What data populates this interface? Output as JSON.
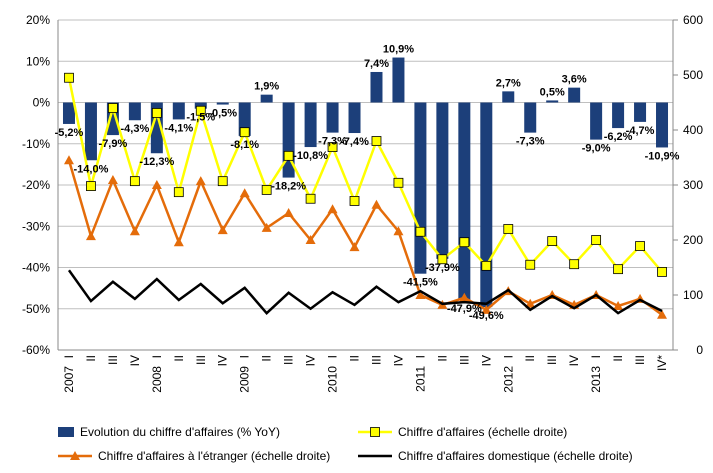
{
  "chart_data": {
    "type": "bar_line",
    "categories": [
      "I",
      "II",
      "III",
      "IV",
      "I",
      "II",
      "III",
      "IV",
      "I",
      "II",
      "III",
      "IV",
      "I",
      "II",
      "III",
      "IV",
      "I",
      "II",
      "III",
      "IV",
      "I",
      "II",
      "III",
      "IV",
      "I",
      "II",
      "III",
      "IV*"
    ],
    "years": [
      "2007",
      "2008",
      "2009",
      "2010",
      "2011",
      "2012",
      "2013"
    ],
    "ylim": [
      -60,
      20
    ],
    "yticks": [
      {
        "value": -60,
        "label": "-60%"
      },
      {
        "value": -50,
        "label": "-50%"
      },
      {
        "value": -40,
        "label": "-40%"
      },
      {
        "value": -30,
        "label": "-30%"
      },
      {
        "value": -20,
        "label": "-20%"
      },
      {
        "value": -10,
        "label": "-10%"
      },
      {
        "value": 0,
        "label": "0%"
      },
      {
        "value": 10,
        "label": "10%"
      },
      {
        "value": 20,
        "label": "20%"
      }
    ],
    "y2lim": [
      0,
      600
    ],
    "y2ticks": [
      0,
      100,
      200,
      300,
      400,
      500,
      600
    ],
    "grid": true,
    "series": [
      {
        "name": "Evolution du chiffre d'affaires (% YoY)",
        "type": "bar",
        "color": "#1c3f7a",
        "axis": "y",
        "values": [
          -5.2,
          -14.0,
          -7.9,
          -4.3,
          -12.3,
          -4.1,
          -1.5,
          -0.5,
          -8.1,
          1.9,
          -18.2,
          -10.8,
          -7.3,
          -7.4,
          7.4,
          10.9,
          -41.5,
          -37.9,
          -47.9,
          -49.6,
          2.7,
          -7.3,
          0.5,
          3.6,
          -9.0,
          -6.2,
          -4.7,
          -10.9
        ],
        "value_labels": [
          "-5,2%",
          "-14,0%",
          "-7,9%",
          "-4,3%",
          "-12,3%",
          "-4,1%",
          "-1,5%",
          "-0,5%",
          "-8,1%",
          "1,9%",
          "-18,2%",
          "-10,8%",
          "-7,3%",
          "-7,4%",
          "7,4%",
          "10,9%",
          "-41,5%",
          "-37,9%",
          "-47,9%",
          "-49,6%",
          "2,7%",
          "-7,3%",
          "0,5%",
          "3,6%",
          "-9,0%",
          "-6,2%",
          "-4,7%",
          "-10,9%"
        ]
      },
      {
        "name": "Chiffre d'affaires (échelle droite)",
        "type": "line",
        "marker": "square",
        "color": "#ffff00",
        "axis": "y2",
        "values": [
          495,
          298,
          440,
          307,
          431,
          287,
          435,
          307,
          396,
          291,
          353,
          275,
          369,
          271,
          380,
          304,
          215,
          165,
          196,
          153,
          220,
          155,
          198,
          156,
          200,
          147,
          189,
          142
        ]
      },
      {
        "name": "Chiffre d'affaires à l'étranger (échelle droite)",
        "type": "line",
        "marker": "triangle",
        "color": "#e46c0a",
        "axis": "y2",
        "values": [
          345,
          207,
          309,
          216,
          300,
          196,
          307,
          218,
          285,
          222,
          249,
          200,
          256,
          187,
          264,
          216,
          100,
          82,
          95,
          73,
          107,
          84,
          100,
          82,
          100,
          80,
          93,
          64
        ]
      },
      {
        "name": "Chiffre d'affaires domestique (échelle droite)",
        "type": "line",
        "marker": "none",
        "color": "#000000",
        "axis": "y2",
        "values": [
          145,
          89,
          124,
          93,
          129,
          91,
          120,
          85,
          113,
          67,
          104,
          75,
          105,
          82,
          115,
          87,
          107,
          84,
          87,
          84,
          109,
          73,
          98,
          76,
          100,
          67,
          91,
          71
        ]
      }
    ]
  }
}
